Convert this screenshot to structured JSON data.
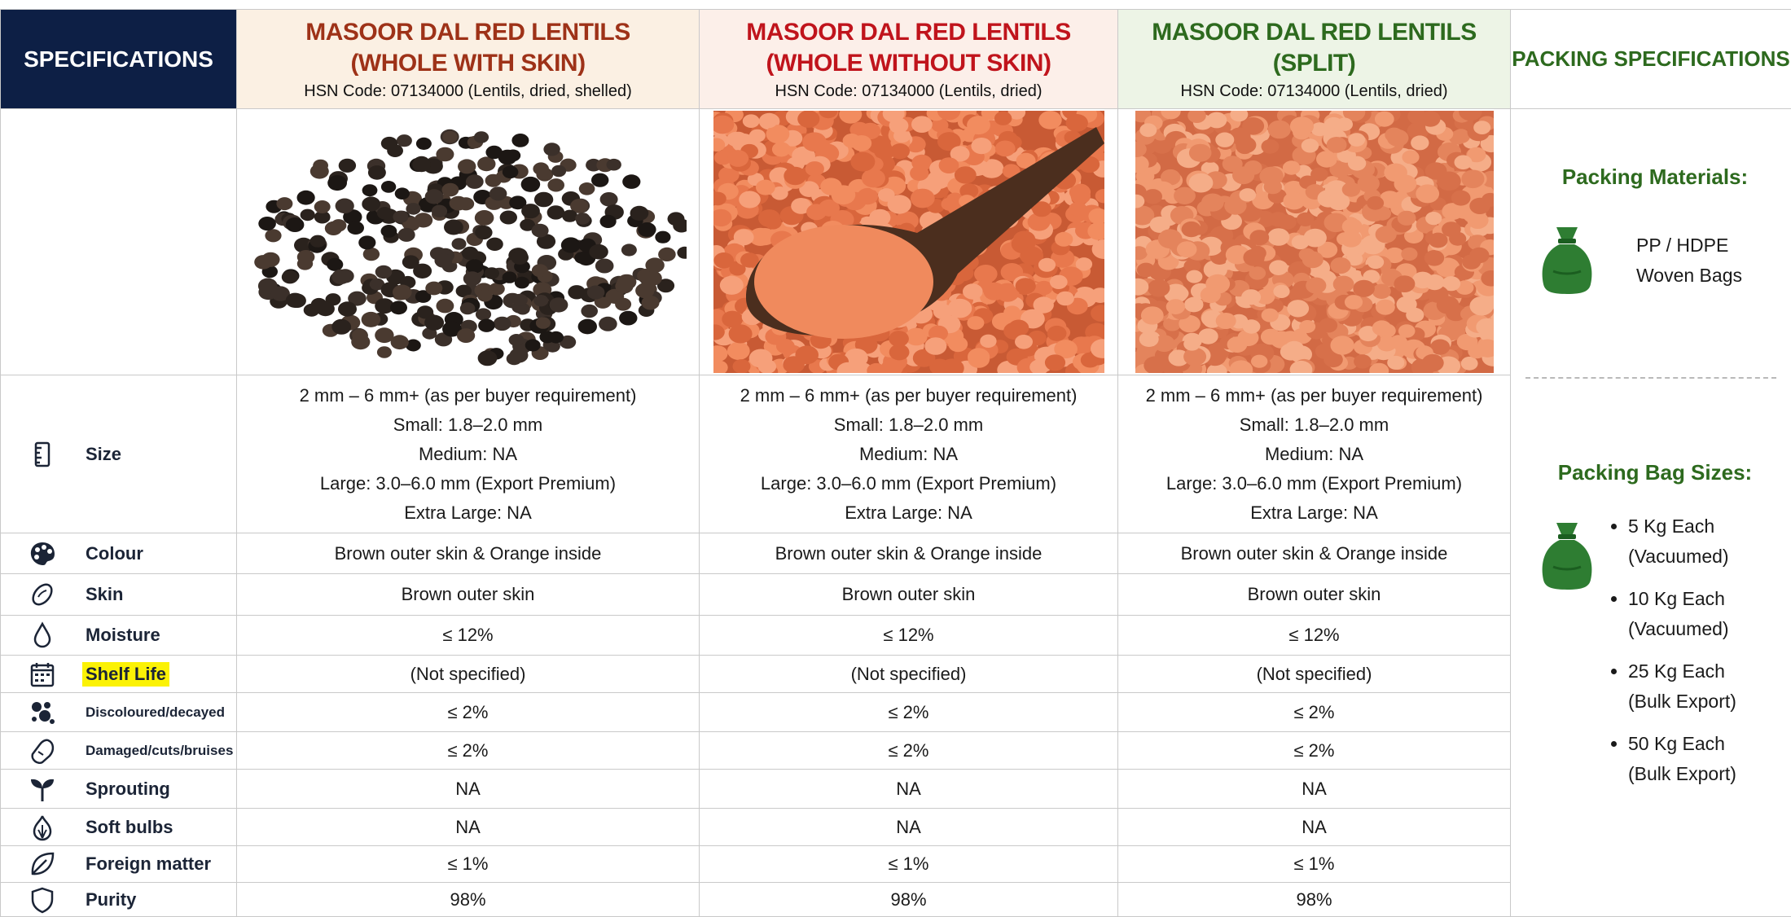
{
  "header": {
    "spec_title": "SPECIFICATIONS",
    "products": [
      {
        "name_line1": "MASOOR DAL RED LENTILS",
        "name_line2": "(WHOLE WITH SKIN)",
        "hsn": "HSN Code: 07134000 (Lentils, dried, shelled)"
      },
      {
        "name_line1": "MASOOR DAL RED LENTILS",
        "name_line2": "(WHOLE WITHOUT SKIN)",
        "hsn": "HSN Code: 07134000 (Lentils, dried)"
      },
      {
        "name_line1": "MASOOR DAL RED LENTILS",
        "name_line2": "(SPLIT)",
        "hsn": "HSN Code: 07134000 (Lentils, dried)"
      }
    ],
    "packing_title": "PACKING SPECIFICATIONS"
  },
  "rows": [
    {
      "label": "Size",
      "values": [
        [
          "2 mm – 6 mm+ (as per buyer requirement)",
          "Small: 1.8–2.0 mm",
          "Medium: NA",
          "Large: 3.0–6.0 mm (Export Premium)",
          "Extra Large: NA"
        ],
        [
          "2 mm – 6 mm+ (as per buyer requirement)",
          "Small: 1.8–2.0 mm",
          "Medium: NA",
          "Large: 3.0–6.0 mm (Export Premium)",
          "Extra Large: NA"
        ],
        [
          "2 mm – 6 mm+ (as per buyer requirement)",
          "Small: 1.8–2.0 mm",
          "Medium: NA",
          "Large: 3.0–6.0 mm (Export Premium)",
          "Extra Large: NA"
        ]
      ]
    },
    {
      "label": "Colour",
      "values": [
        "Brown outer skin & Orange inside",
        "Brown outer skin & Orange inside",
        "Brown outer skin & Orange inside"
      ]
    },
    {
      "label": "Skin",
      "values": [
        "Brown outer skin",
        "Brown outer skin",
        "Brown outer skin"
      ]
    },
    {
      "label": "Moisture",
      "values": [
        "≤ 12%",
        "≤ 12%",
        "≤ 12%"
      ]
    },
    {
      "label": "Shelf Life",
      "highlight": true,
      "values": [
        "(Not specified)",
        "(Not specified)",
        "(Not specified)"
      ]
    },
    {
      "label": "Discoloured/decayed",
      "values": [
        "≤ 2%",
        "≤ 2%",
        "≤ 2%"
      ]
    },
    {
      "label": "Damaged/cuts/bruises",
      "values": [
        "≤ 2%",
        "≤ 2%",
        "≤ 2%"
      ]
    },
    {
      "label": "Sprouting",
      "values": [
        "NA",
        "NA",
        "NA"
      ]
    },
    {
      "label": "Soft bulbs",
      "values": [
        "NA",
        "NA",
        "NA"
      ]
    },
    {
      "label": "Foreign matter",
      "values": [
        "≤ 1%",
        "≤ 1%",
        "≤ 1%"
      ]
    },
    {
      "label": "Purity",
      "values": [
        "98%",
        "98%",
        "98%"
      ]
    }
  ],
  "packing": {
    "materials_title": "Packing Materials:",
    "materials": [
      "PP / HDPE",
      "Woven Bags"
    ],
    "sizes_title": "Packing Bag Sizes:",
    "sizes": [
      {
        "size": "5 Kg Each",
        "note": "(Vacuumed)"
      },
      {
        "size": "10 Kg Each",
        "note": "(Vacuumed)"
      },
      {
        "size": "25 Kg Each",
        "note": "(Bulk Export)"
      },
      {
        "size": "50 Kg Each",
        "note": "(Bulk Export)"
      }
    ]
  }
}
